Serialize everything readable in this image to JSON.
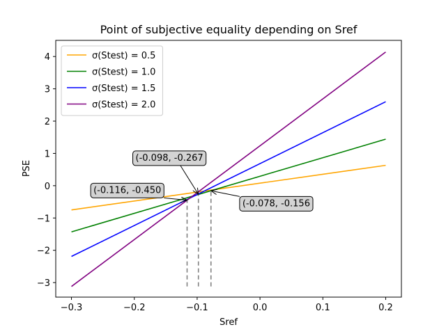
{
  "chart_data": {
    "type": "line",
    "title": "Point of subjective equality depending on Sref",
    "xlabel": "Sref",
    "ylabel": "PSE",
    "xlim": [
      -0.325,
      0.225
    ],
    "ylim": [
      -3.45,
      4.5
    ],
    "xticks": [
      -0.3,
      -0.2,
      -0.1,
      0.0,
      0.1,
      0.2
    ],
    "xtick_labels": [
      "−0.3",
      "−0.2",
      "−0.1",
      "0.0",
      "0.1",
      "0.2"
    ],
    "yticks": [
      -3,
      -2,
      -1,
      0,
      1,
      2,
      3,
      4
    ],
    "ytick_labels": [
      "−3",
      "−2",
      "−1",
      "0",
      "1",
      "2",
      "3",
      "4"
    ],
    "grid": false,
    "legend_position": "top-left",
    "series": [
      {
        "name": "σ(Stest) = 0.5",
        "color": "#FFA500",
        "x": [
          -0.3,
          0.2
        ],
        "y": [
          -0.75,
          0.63
        ]
      },
      {
        "name": "σ(Stest) = 1.0",
        "color": "#008000",
        "x": [
          -0.3,
          0.2
        ],
        "y": [
          -1.43,
          1.44
        ]
      },
      {
        "name": "σ(Stest) = 1.5",
        "color": "#0000FF",
        "x": [
          -0.3,
          0.2
        ],
        "y": [
          -2.19,
          2.6
        ]
      },
      {
        "name": "σ(Stest) = 2.0",
        "color": "#800080",
        "x": [
          -0.3,
          0.2
        ],
        "y": [
          -3.12,
          4.14
        ]
      }
    ],
    "vlines": [
      {
        "x": -0.116,
        "y0": -3.12,
        "y1": -0.45,
        "color": "#808080"
      },
      {
        "x": -0.098,
        "y0": -3.12,
        "y1": -0.267,
        "color": "#808080"
      },
      {
        "x": -0.078,
        "y0": -3.12,
        "y1": -0.156,
        "color": "#808080"
      }
    ],
    "annotations": [
      {
        "text": "(-0.116, -0.450",
        "x": -0.116,
        "y": -0.45,
        "text_x": -0.265,
        "text_y": -0.15
      },
      {
        "text": "(-0.098, -0.267",
        "x": -0.098,
        "y": -0.267,
        "text_x": -0.198,
        "text_y": 0.85
      },
      {
        "text": "(-0.078, -0.156",
        "x": -0.078,
        "y": -0.156,
        "text_x": -0.028,
        "text_y": -0.56
      }
    ]
  }
}
